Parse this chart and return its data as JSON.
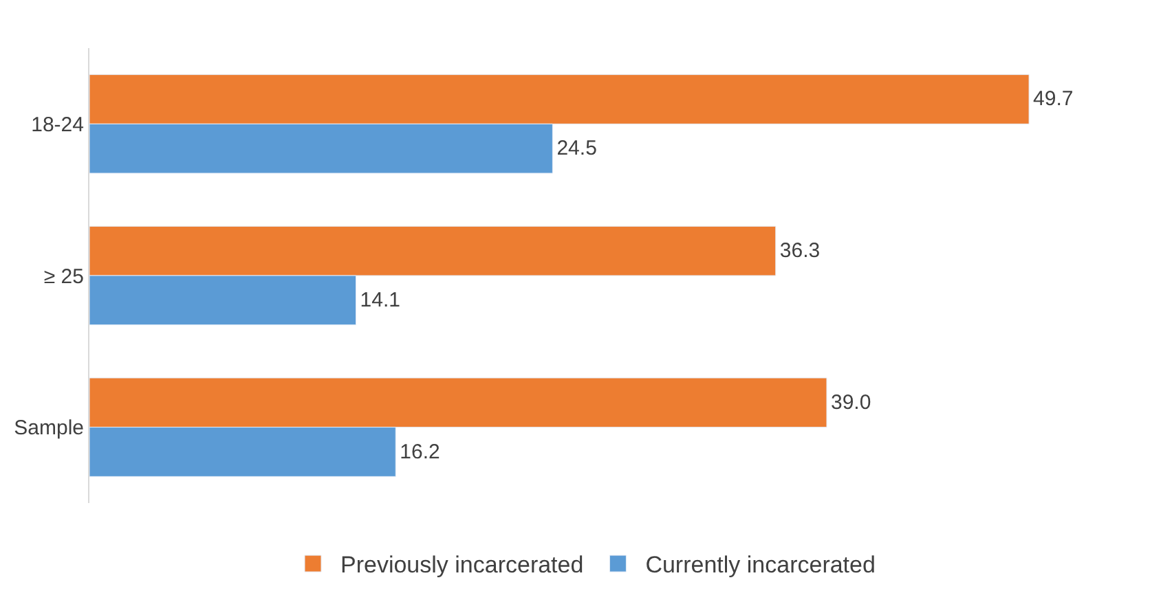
{
  "chart_data": {
    "type": "bar",
    "orientation": "horizontal",
    "categories": [
      "18-24",
      "≥ 25",
      "Sample"
    ],
    "series": [
      {
        "name": "Previously incarcerated",
        "color": "#ed7d31",
        "values": [
          49.7,
          36.3,
          39.0
        ],
        "value_labels": [
          "49.7",
          "36.3",
          "39.0"
        ]
      },
      {
        "name": "Currently incarcerated",
        "color": "#5b9bd5",
        "values": [
          24.5,
          14.1,
          16.2
        ],
        "value_labels": [
          "24.5",
          "14.1",
          "16.2"
        ]
      }
    ],
    "legend": "bottom"
  }
}
